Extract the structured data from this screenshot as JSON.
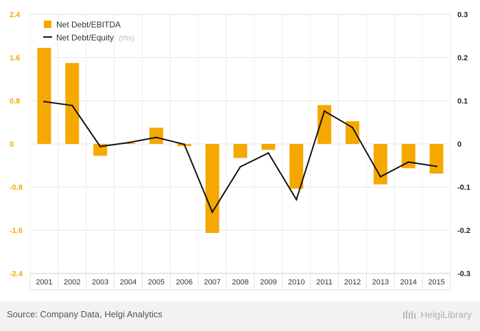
{
  "chart_data": {
    "type": "bar",
    "categories": [
      "2001",
      "2002",
      "2003",
      "2004",
      "2005",
      "2006",
      "2007",
      "2008",
      "2009",
      "2010",
      "2011",
      "2012",
      "2013",
      "2014",
      "2015"
    ],
    "series": [
      {
        "name": "Net Debt/EBITDA",
        "axis": "left",
        "type": "bar",
        "color": "#f5a800",
        "values": [
          1.78,
          1.5,
          -0.22,
          0.02,
          0.3,
          -0.04,
          -1.65,
          -0.26,
          -0.11,
          -0.83,
          0.72,
          0.42,
          -0.75,
          -0.45,
          -0.55
        ]
      },
      {
        "name": "Net Debt/Equity",
        "name_suffix": "(rhs)",
        "axis": "right",
        "type": "line",
        "color": "#111111",
        "values": [
          0.098,
          0.089,
          -0.006,
          0.003,
          0.015,
          -0.001,
          -0.158,
          -0.053,
          -0.021,
          -0.129,
          0.076,
          0.038,
          -0.076,
          -0.042,
          -0.052
        ]
      }
    ],
    "left_axis": {
      "min": -2.4,
      "max": 2.4,
      "ticks": [
        "2.4",
        "1.6",
        "0.8",
        "0",
        "-0.8",
        "-1.6",
        "-2.4"
      ],
      "color": "#f5a800"
    },
    "right_axis": {
      "min": -0.3,
      "max": 0.3,
      "ticks": [
        "0.3",
        "0.2",
        "0.1",
        "0",
        "-0.1",
        "-0.2",
        "-0.3"
      ]
    },
    "grid": true,
    "legend_position": "top-left"
  },
  "footer": {
    "source": "Source: Company Data, Helgi Analytics",
    "brand": "HelgiLibrary"
  }
}
